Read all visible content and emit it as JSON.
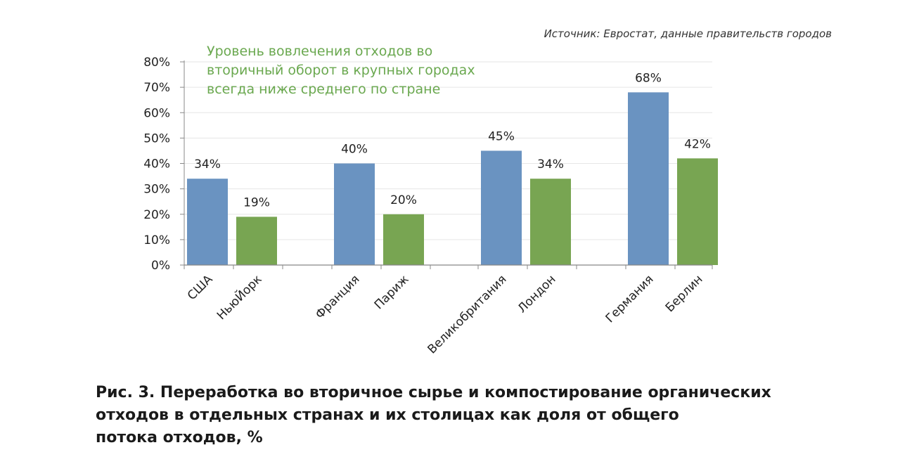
{
  "source_note": "Источник: Евростат, данные правительств городов",
  "annotation_lines": [
    "Уровень вовлечения отходов во",
    "вторичный оборот в крупных городах",
    "всегда ниже среднего по стране"
  ],
  "caption_lines": [
    "Рис. 3. Переработка во вторичное сырье и компостирование органических",
    "отходов в отдельных странах и их столицах как доля от общего",
    "потока отходов, %"
  ],
  "colors": {
    "country": "#6a93c1",
    "city": "#78a552",
    "annotation": "#6aa84f",
    "grid": "#e6e6e6",
    "axis": "#888888"
  },
  "chart_data": {
    "type": "bar",
    "categories": [
      "США",
      "НьюЙорк",
      "Франция",
      "Париж",
      "Великобритания",
      "Лондон",
      "Германия",
      "Берлин"
    ],
    "values": [
      34,
      19,
      40,
      20,
      45,
      34,
      68,
      42
    ],
    "value_labels": [
      "34%",
      "19%",
      "40%",
      "20%",
      "45%",
      "34%",
      "68%",
      "42%"
    ],
    "bar_kind": [
      "country",
      "city",
      "country",
      "city",
      "country",
      "city",
      "country",
      "city"
    ],
    "yticks": [
      "0%",
      "10%",
      "20%",
      "30%",
      "40%",
      "50%",
      "60%",
      "70%",
      "80%"
    ],
    "ylim": [
      0,
      80
    ],
    "grid": true,
    "legend": "none"
  }
}
